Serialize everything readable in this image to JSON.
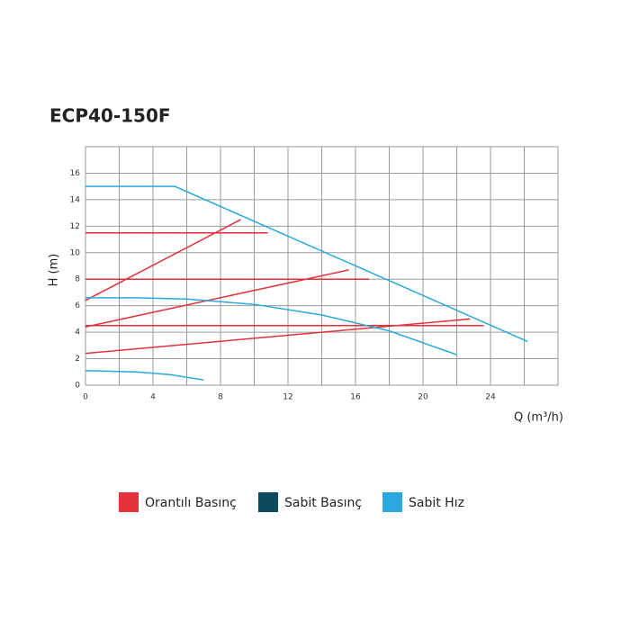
{
  "chart_data": {
    "type": "line",
    "title": "ECP40-150F",
    "xlabel": "Q (m³/h)",
    "ylabel": "H (m)",
    "xlim": [
      0,
      28
    ],
    "xticks": [
      0,
      4,
      8,
      12,
      16,
      20,
      24
    ],
    "xgrid": [
      2,
      6,
      10,
      14,
      18,
      22,
      26,
      28
    ],
    "ylim": [
      0,
      18
    ],
    "yticks": [
      0,
      2,
      4,
      6,
      8,
      10,
      12,
      14,
      16
    ],
    "ygrid": [
      18
    ],
    "grid": true,
    "series": [
      {
        "name": "Orantılı Basınç",
        "color": "#e2323c",
        "lines": [
          {
            "x": [
              0,
              9.2
            ],
            "values": [
              6.4,
              12.5
            ]
          },
          {
            "x": [
              0,
              10.8
            ],
            "values": [
              11.5,
              11.5
            ]
          },
          {
            "x": [
              0,
              15.6
            ],
            "values": [
              4.4,
              8.7
            ]
          },
          {
            "x": [
              0,
              16.8
            ],
            "values": [
              8,
              8
            ]
          },
          {
            "x": [
              0,
              22.8
            ],
            "values": [
              2.4,
              5.0
            ]
          },
          {
            "x": [
              0,
              23.6
            ],
            "values": [
              4.5,
              4.5
            ]
          }
        ]
      },
      {
        "name": "Sabit Basınç",
        "color": "#0e4a5e",
        "lines": []
      },
      {
        "name": "Sabit Hız",
        "color": "#29a9df",
        "lines": [
          {
            "x": [
              0,
              5.3,
              26.2
            ],
            "values": [
              15,
              15,
              3.3
            ]
          },
          {
            "x": [
              0,
              3,
              6,
              10,
              14,
              18,
              22
            ],
            "values": [
              6.6,
              6.6,
              6.5,
              6.1,
              5.3,
              4.1,
              2.3
            ]
          },
          {
            "x": [
              0,
              3,
              5,
              7
            ],
            "values": [
              1.1,
              1.0,
              0.8,
              0.4
            ]
          }
        ]
      }
    ]
  }
}
